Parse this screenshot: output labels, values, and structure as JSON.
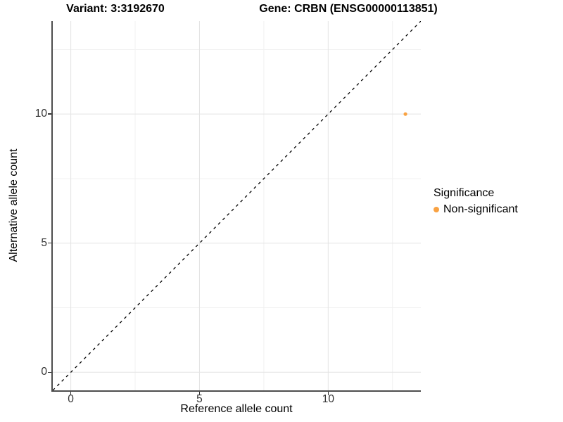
{
  "titles": {
    "variant": "Variant: 3:3192670",
    "gene": "Gene: CRBN (ENSG00000113851)"
  },
  "chart_data": {
    "type": "scatter",
    "xlabel": "Reference allele count",
    "ylabel": "Alternative allele count",
    "xlim": [
      -0.7,
      13.6
    ],
    "ylim": [
      -0.7,
      13.6
    ],
    "x_ticks": [
      0,
      5,
      10
    ],
    "y_ticks": [
      0,
      5,
      10
    ],
    "x_minor_gridlines": [
      2.5,
      7.5,
      12.5
    ],
    "y_minor_gridlines": [
      2.5,
      7.5,
      12.5
    ],
    "grid": true,
    "series": [
      {
        "name": "Non-significant",
        "color": "#F9A242",
        "points": [
          {
            "x": 13,
            "y": 10
          }
        ]
      }
    ],
    "reference_line": {
      "kind": "identity",
      "style": "dashed",
      "color": "#000000"
    },
    "legend": {
      "title": "Significance",
      "position": "right",
      "items": [
        {
          "label": "Non-significant",
          "color": "#F9A242"
        }
      ]
    },
    "colors": {
      "background": "#ffffff",
      "axis_line": "#4d4d4d",
      "major_grid": "#e4e4e4",
      "minor_grid": "#f1f1f1",
      "tick": "#333333"
    }
  }
}
